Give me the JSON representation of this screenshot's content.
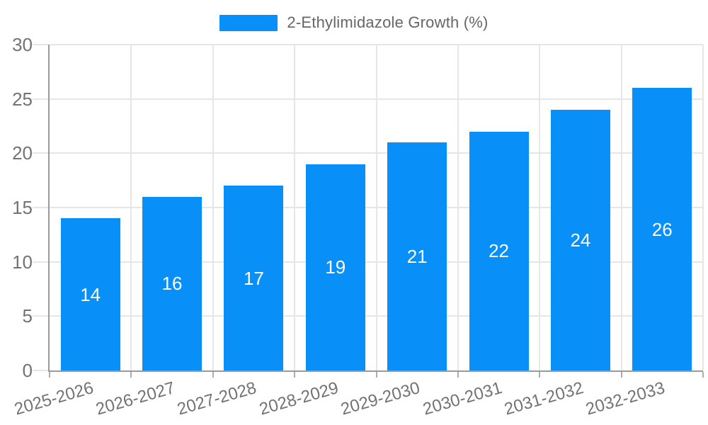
{
  "legend": {
    "label": "2-Ethylimidazole Growth (%)"
  },
  "chart_data": {
    "type": "bar",
    "title": "2-Ethylimidazole Growth (%)",
    "categories": [
      "2025-2026",
      "2026-2027",
      "2027-2028",
      "2028-2029",
      "2029-2030",
      "2030-2031",
      "2031-2032",
      "2032-2033"
    ],
    "values": [
      14,
      16,
      17,
      19,
      21,
      22,
      24,
      26
    ],
    "xlabel": "",
    "ylabel": "",
    "ylim": [
      0,
      30
    ],
    "yticks": [
      0,
      5,
      10,
      15,
      20,
      25,
      30
    ],
    "grid": true,
    "legend_position": "top",
    "x_label_rotation_deg": -16,
    "colors": {
      "bar_fill": "#0890f8",
      "bar_value_label": "#ffffff",
      "axis_line": "#9a9a9a",
      "gridline": "#e6e6e6",
      "tick_label": "#737373",
      "x_tick_mark": "#adadad",
      "legend_text": "#666666",
      "background": "#ffffff"
    }
  }
}
